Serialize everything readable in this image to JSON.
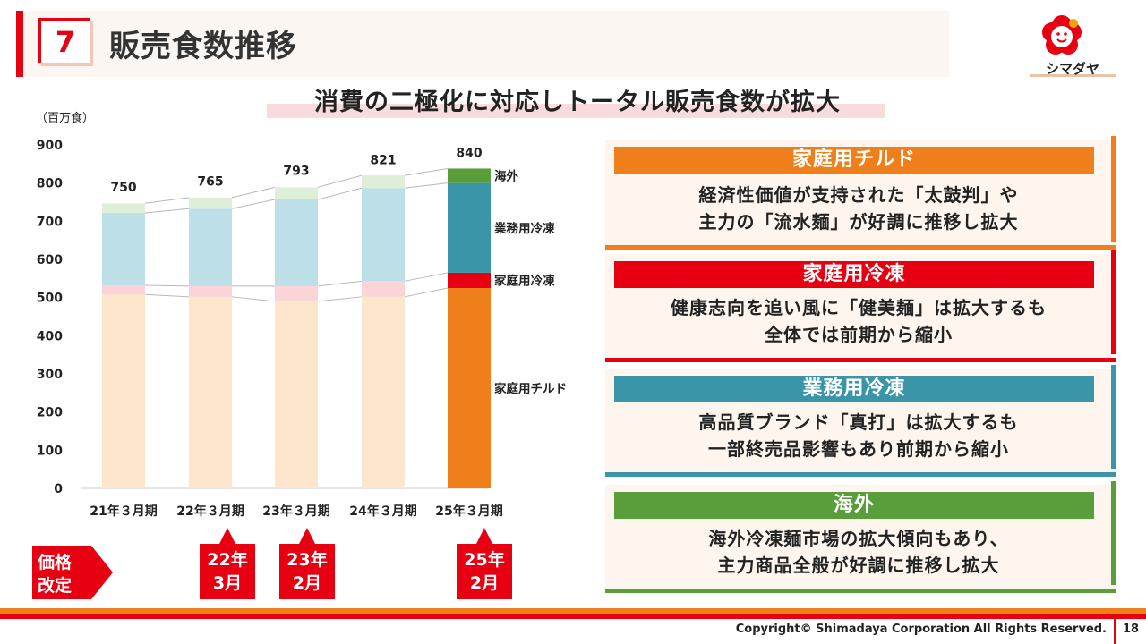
{
  "header": {
    "section_number": "7",
    "title": "販売食数推移"
  },
  "logo": {
    "text": "シマダヤ"
  },
  "subtitle": "消費の二極化に対応しトータル販売食数が拡大",
  "chart_data": {
    "type": "bar",
    "stacked": true,
    "unit_label": "（百万食）",
    "categories": [
      "21年３月期",
      "22年３月期",
      "23年３月期",
      "24年３月期",
      "25年３月期"
    ],
    "ylim": [
      0,
      900
    ],
    "yticks": [
      0,
      100,
      200,
      300,
      400,
      500,
      600,
      700,
      800,
      900
    ],
    "totals": [
      750,
      765,
      793,
      821,
      840
    ],
    "series": [
      {
        "name": "家庭用チルド",
        "values": [
          508,
          502,
          490,
          502,
          525
        ],
        "color": "#fde6cc",
        "highlight_color": "#ef7f1a"
      },
      {
        "name": "家庭用冷凍",
        "values": [
          24,
          28,
          40,
          41,
          40
        ],
        "color": "#fad4d6",
        "highlight_color": "#e60012"
      },
      {
        "name": "業務用冷凍",
        "values": [
          190,
          203,
          227,
          244,
          235
        ],
        "color": "#bcdfe8",
        "highlight_color": "#3a95a8"
      },
      {
        "name": "海外",
        "values": [
          25,
          29,
          32,
          33,
          38
        ],
        "color": "#deefd8",
        "highlight_color": "#5a9e3c"
      }
    ],
    "grid": false
  },
  "panels": [
    {
      "title": "家庭用チルド",
      "color": "#ef7f1a",
      "lines": [
        "経済性価値が支持された「太鼓判」や",
        "主力の「流水麺」が好調に推移し拡大"
      ]
    },
    {
      "title": "家庭用冷凍",
      "color": "#e60012",
      "lines": [
        "健康志向を追い風に「健美麺」は拡大するも",
        "全体では前期から縮小"
      ]
    },
    {
      "title": "業務用冷凍",
      "color": "#3a95a8",
      "lines": [
        "高品質ブランド「真打」は拡大するも",
        "一部終売品影響もあり前期から縮小"
      ]
    },
    {
      "title": "海外",
      "color": "#5a9e3c",
      "lines": [
        "海外冷凍麺市場の拡大傾向もあり、",
        "主力商品全般が好調に推移し拡大"
      ]
    }
  ],
  "price_revision": {
    "label_line1": "価格",
    "label_line2": "改定",
    "markers": [
      {
        "line1": "22年",
        "line2": "3月"
      },
      {
        "line1": "23年",
        "line2": "2月"
      },
      {
        "line1": "25年",
        "line2": "2月"
      }
    ]
  },
  "footer": {
    "copyright": "Copyright© Shimadaya Corporation All Rights Reserved.",
    "page": "18"
  }
}
